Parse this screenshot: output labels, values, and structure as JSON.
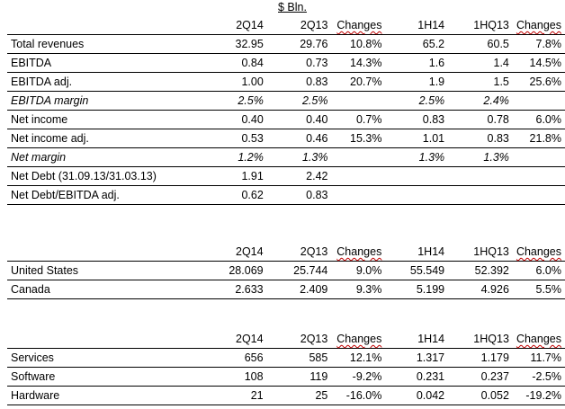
{
  "unit_label": "$ Bln.",
  "table1": {
    "headers": [
      "",
      "2Q14",
      "2Q13",
      "Changes",
      "1H14",
      "1HQ13",
      "Changes"
    ],
    "rows": [
      [
        "Total revenues",
        "32.95",
        "29.76",
        "10.8%",
        "65.2",
        "60.5",
        "7.8%"
      ],
      [
        "EBITDA",
        "0.84",
        "0.73",
        "14.3%",
        "1.6",
        "1.4",
        "14.5%"
      ],
      [
        "EBITDA adj.",
        "1.00",
        "0.83",
        "20.7%",
        "1.9",
        "1.5",
        "25.6%"
      ],
      [
        "EBITDA margin",
        "2.5%",
        "2.5%",
        "",
        "2.5%",
        "2.4%",
        ""
      ],
      [
        "Net income",
        "0.40",
        "0.40",
        "0.7%",
        "0.83",
        "0.78",
        "6.0%"
      ],
      [
        "Net income adj.",
        "0.53",
        "0.46",
        "15.3%",
        "1.01",
        "0.83",
        "21.8%"
      ],
      [
        "Net margin",
        "1.2%",
        "1.3%",
        "",
        "1.3%",
        "1.3%",
        ""
      ],
      [
        "Net Debt (31.09.13/31.03.13)",
        "1.91",
        "2.42",
        "",
        "",
        "",
        ""
      ],
      [
        "Net Debt/EBITDA adj.",
        "0.62",
        "0.83",
        "",
        "",
        "",
        ""
      ]
    ]
  },
  "table2": {
    "headers": [
      "",
      "2Q14",
      "2Q13",
      "Changes",
      "1H14",
      "1HQ13",
      "Changes"
    ],
    "rows": [
      [
        "United States",
        "28.069",
        "25.744",
        "9.0%",
        "55.549",
        "52.392",
        "6.0%"
      ],
      [
        "Canada",
        "2.633",
        "2.409",
        "9.3%",
        "5.199",
        "4.926",
        "5.5%"
      ]
    ]
  },
  "table3": {
    "headers": [
      "",
      "2Q14",
      "2Q13",
      "Changes",
      "1H14",
      "1HQ13",
      "Changes"
    ],
    "rows": [
      [
        "Services",
        "656",
        "585",
        "12.1%",
        "1.317",
        "1.179",
        "11.7%"
      ],
      [
        "Software",
        "108",
        "119",
        "-9.2%",
        "0.231",
        "0.237",
        "-2.5%"
      ],
      [
        "Hardware",
        "21",
        "25",
        "-16.0%",
        "0.042",
        "0.052",
        "-19.2%"
      ]
    ]
  }
}
